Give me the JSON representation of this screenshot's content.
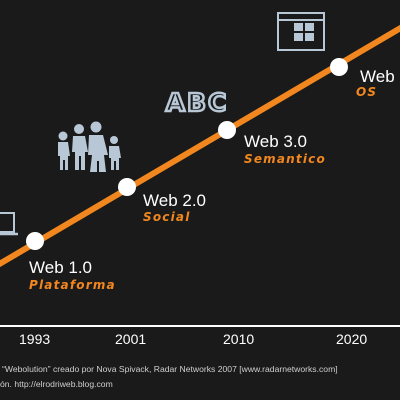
{
  "colors": {
    "background": "#1a1a1a",
    "timeline": "#f2871f",
    "milestone_dot": "#ffffff",
    "label": "#ffffff",
    "sublabel": "#f2871f",
    "icon": "#b8c7d6",
    "caption": "#cfcfcf"
  },
  "milestones": [
    {
      "label": "Web 1.0",
      "sublabel": "Plataforma",
      "icon": "laptop-icon"
    },
    {
      "label": "Web 2.0",
      "sublabel": "Social",
      "icon": "people-icon"
    },
    {
      "label": "Web 3.0",
      "sublabel": "Semantico",
      "icon": "abc-text-icon"
    },
    {
      "label": "Web",
      "sublabel": "OS",
      "icon": "window-icon"
    }
  ],
  "icons": {
    "abc_text": "ABC"
  },
  "years": [
    "1993",
    "2001",
    "2010",
    "2020"
  ],
  "caption": {
    "line1": "“Webolution” creado por Nova Spivack, Radar Networks 2007 [www.radarnetworks.com]",
    "line2": "ón. http://elrodriweb.blog.com"
  }
}
